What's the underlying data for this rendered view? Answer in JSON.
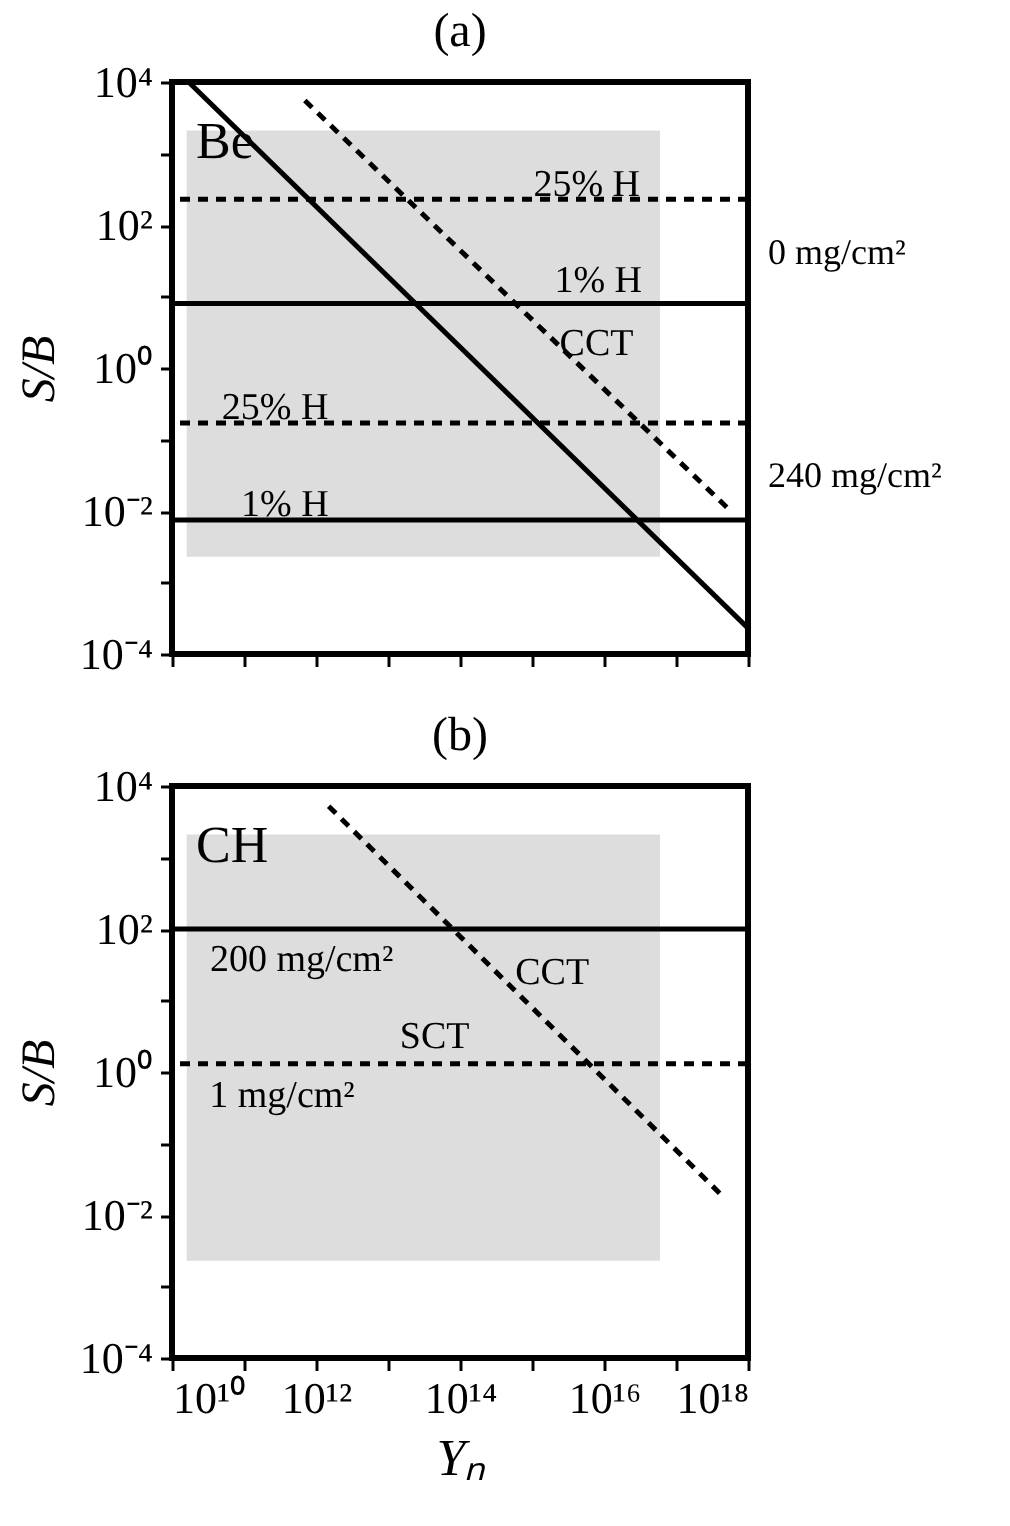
{
  "chart_data": [
    {
      "type": "line",
      "title": "(a)",
      "ylabel": "S/B",
      "log": "xy",
      "grid": false,
      "tick_labels": "y",
      "xlim": [
        10000000000.0,
        1e+18
      ],
      "ylim": [
        0.0001,
        10000.0
      ],
      "xticks": [
        {
          "value": 10000000000.0,
          "label": null
        },
        {
          "value": 100000000000.0,
          "label": null
        },
        {
          "value": 1000000000000.0,
          "label": null
        },
        {
          "value": 10000000000000.0,
          "label": null
        },
        {
          "value": 100000000000000.0,
          "label": null
        },
        {
          "value": 1000000000000000.0,
          "label": null
        },
        {
          "value": 1e+16,
          "label": null
        },
        {
          "value": 1e+17,
          "label": null
        },
        {
          "value": 1e+18,
          "label": null
        }
      ],
      "yticks": [
        {
          "value": 0.0001,
          "label": "10⁻⁴"
        },
        {
          "value": 0.001,
          "label": null
        },
        {
          "value": 0.01,
          "label": "10⁻²"
        },
        {
          "value": 0.1,
          "label": null
        },
        {
          "value": 1,
          "label": "10⁰"
        },
        {
          "value": 10,
          "label": null
        },
        {
          "value": 100,
          "label": "10²"
        },
        {
          "value": 1000,
          "label": null
        },
        {
          "value": 10000,
          "label": "10⁴"
        }
      ],
      "series": [
        {
          "color": "#000000",
          "line_style": "solid",
          "x": [
            17000000000.0,
            1e+18
          ],
          "values": [
            10000,
            0.00023
          ]
        },
        {
          "color": "#000000",
          "line_style": "dashed",
          "x": [
            700000000000.0,
            5.2e+17
          ],
          "values": [
            5500,
            0.011
          ]
        }
      ],
      "bands": [
        {
          "axis": "x",
          "from": 16000000000.0,
          "to": 6e+16,
          "color": "#dcdddc"
        }
      ],
      "ref_lines": [
        {
          "axis": "y",
          "value": 230,
          "line_style": "dashed",
          "color": "#000000"
        },
        {
          "axis": "y",
          "value": 8,
          "line_style": "solid",
          "color": "#000000"
        },
        {
          "axis": "y",
          "value": 0.17,
          "line_style": "dashed",
          "color": "#000000"
        },
        {
          "axis": "y",
          "value": 0.0075,
          "line_style": "solid",
          "color": "#000000"
        }
      ],
      "annotations": [
        "Be",
        "0 mg/cm²",
        "240 mg/cm²",
        "25% H",
        "1% H",
        "CCT",
        "25% H",
        "1% H"
      ]
    },
    {
      "type": "line",
      "title": "(b)",
      "xlabel": "Yₙ",
      "ylabel": "S/B",
      "log": "xy",
      "grid": false,
      "xlim": [
        10000000000.0,
        1e+18
      ],
      "ylim": [
        0.0001,
        10000.0
      ],
      "xticks": [
        {
          "value": 10000000000.0,
          "label": "10¹⁰"
        },
        {
          "value": 100000000000.0,
          "label": null
        },
        {
          "value": 1000000000000.0,
          "label": "10¹²"
        },
        {
          "value": 10000000000000.0,
          "label": null
        },
        {
          "value": 100000000000000.0,
          "label": "10¹⁴"
        },
        {
          "value": 1000000000000000.0,
          "label": null
        },
        {
          "value": 1e+16,
          "label": "10¹⁶"
        },
        {
          "value": 1e+17,
          "label": null
        },
        {
          "value": 1e+18,
          "label": "10¹⁸"
        }
      ],
      "yticks": [
        {
          "value": 0.0001,
          "label": "10⁻⁴"
        },
        {
          "value": 0.001,
          "label": null
        },
        {
          "value": 0.01,
          "label": "10⁻²"
        },
        {
          "value": 0.1,
          "label": null
        },
        {
          "value": 1,
          "label": "10⁰"
        },
        {
          "value": 10,
          "label": null
        },
        {
          "value": 100,
          "label": "10²"
        },
        {
          "value": 1000,
          "label": null
        },
        {
          "value": 10000,
          "label": "10⁴"
        }
      ],
      "series": [
        {
          "color": "#000000",
          "line_style": "dashed",
          "x": [
            1500000000000.0,
            4.8e+17
          ],
          "values": [
            5200,
            0.017
          ]
        }
      ],
      "bands": [
        {
          "axis": "x",
          "from": 16000000000.0,
          "to": 6e+16,
          "color": "#dcdddc"
        }
      ],
      "ref_lines": [
        {
          "axis": "y",
          "value": 100,
          "line_style": "solid",
          "color": "#000000"
        },
        {
          "axis": "y",
          "value": 1.3,
          "line_style": "dashed",
          "color": "#000000"
        }
      ],
      "annotations": [
        "CH",
        "200 mg/cm²",
        "1 mg/cm²",
        "CCT",
        "SCT"
      ]
    }
  ]
}
